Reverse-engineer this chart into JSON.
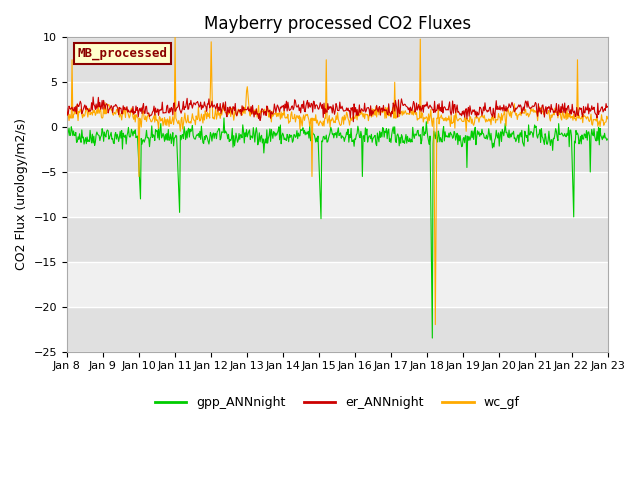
{
  "title": "Mayberry processed CO2 Fluxes",
  "ylabel": "CO2 Flux (urology/m2/s)",
  "ylim": [
    -25,
    10
  ],
  "yticks": [
    -25,
    -20,
    -15,
    -10,
    -5,
    0,
    5,
    10
  ],
  "n_points": 720,
  "xtick_labels": [
    "Jan 8",
    "Jan 9",
    "Jan 10",
    "Jan 11",
    "Jan 12",
    "Jan 13",
    "Jan 14",
    "Jan 15",
    "Jan 16",
    "Jan 17",
    "Jan 18",
    "Jan 19",
    "Jan 20",
    "Jan 21",
    "Jan 22",
    "Jan 23"
  ],
  "color_gpp": "#00cc00",
  "color_er": "#cc0000",
  "color_wc": "#ffaa00",
  "background_color": "#ffffff",
  "plot_bg_color": "#e8e8e8",
  "band_color_light": "#f0f0f0",
  "band_color_dark": "#e0e0e0",
  "legend_label": "MB_processed",
  "legend_bg": "#ffffcc",
  "legend_border": "#8B0000",
  "grid_color": "#ffffff",
  "series_labels": [
    "gpp_ANNnight",
    "er_ANNnight",
    "wc_gf"
  ],
  "title_fontsize": 12,
  "axis_fontsize": 9,
  "tick_fontsize": 8,
  "linewidth": 0.8
}
